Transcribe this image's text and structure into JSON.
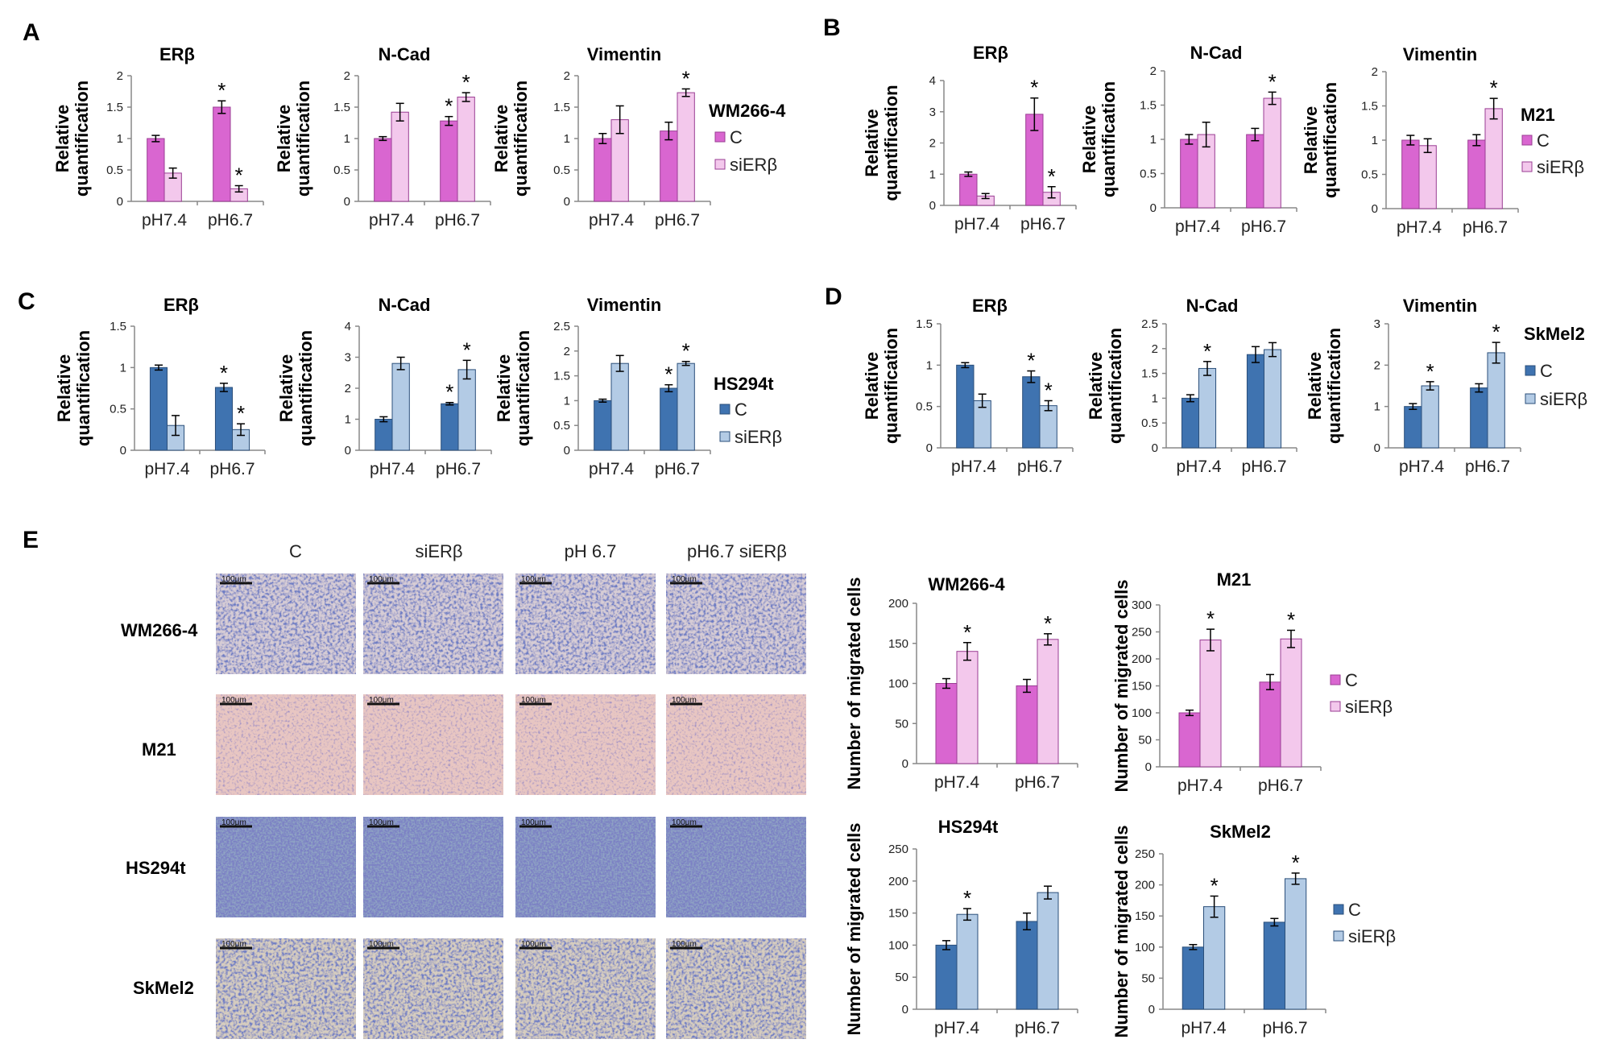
{
  "colors": {
    "pink_c": "#d966d0",
    "pink_si": "#f3c8ec",
    "blue_c": "#3f73b0",
    "blue_si": "#b3cbe5",
    "axis": "#888888",
    "err": "#000000"
  },
  "panels": {
    "A": {
      "letter": "A",
      "cell_line": "WM266-4",
      "legend": [
        "C",
        "siERβ"
      ]
    },
    "B": {
      "letter": "B",
      "cell_line": "M21",
      "legend": [
        "C",
        "siERβ"
      ]
    },
    "C": {
      "letter": "C",
      "cell_line": "HS294t",
      "legend": [
        "C",
        "siERβ"
      ]
    },
    "D": {
      "letter": "D",
      "cell_line": "SkMel2",
      "legend": [
        "C",
        "siERβ"
      ]
    },
    "E": {
      "letter": "E",
      "columns": [
        "C",
        "siERβ",
        "pH 6.7",
        "pH6.7 siERβ"
      ],
      "rows": [
        "WM266-4",
        "M21",
        "HS294t",
        "SkMel2"
      ],
      "scale_bar": "100μm",
      "legend_pink": [
        "C",
        "siERβ"
      ],
      "legend_blue": [
        "C",
        "siERβ"
      ]
    }
  },
  "chart_data": [
    {
      "id": "A1",
      "panel": "A",
      "type": "bar",
      "title": "ERβ",
      "ylabel": "Relative quantification",
      "categories": [
        "pH7.4",
        "pH6.7"
      ],
      "ylim": [
        0,
        2
      ],
      "yticks": [
        "0",
        "0.5",
        "1",
        "1.5",
        "2"
      ],
      "series": [
        {
          "name": "C",
          "values": [
            1.0,
            1.5
          ],
          "err": [
            0.05,
            0.1
          ]
        },
        {
          "name": "siERβ",
          "values": [
            0.45,
            0.2
          ],
          "err": [
            0.08,
            0.05
          ]
        }
      ],
      "significant": [
        [
          false,
          true
        ],
        [
          false,
          true
        ]
      ]
    },
    {
      "id": "A2",
      "panel": "A",
      "type": "bar",
      "title": "N-Cad",
      "ylabel": "Relative quantification",
      "categories": [
        "pH7.4",
        "pH6.7"
      ],
      "ylim": [
        0,
        2
      ],
      "yticks": [
        "0",
        "0.5",
        "1",
        "1.5",
        "2"
      ],
      "series": [
        {
          "name": "C",
          "values": [
            1.0,
            1.28
          ],
          "err": [
            0.03,
            0.07
          ]
        },
        {
          "name": "siERβ",
          "values": [
            1.42,
            1.66
          ],
          "err": [
            0.14,
            0.07
          ]
        }
      ],
      "significant": [
        [
          false,
          true
        ],
        [
          false,
          true
        ]
      ]
    },
    {
      "id": "A3",
      "panel": "A",
      "type": "bar",
      "title": "Vimentin",
      "ylabel": "Relative quantification",
      "categories": [
        "pH7.4",
        "pH6.7"
      ],
      "ylim": [
        0,
        2
      ],
      "yticks": [
        "0",
        "0.5",
        "1",
        "1.5",
        "2"
      ],
      "series": [
        {
          "name": "C",
          "values": [
            1.0,
            1.12
          ],
          "err": [
            0.08,
            0.14
          ]
        },
        {
          "name": "siERβ",
          "values": [
            1.3,
            1.73
          ],
          "err": [
            0.22,
            0.06
          ]
        }
      ],
      "significant": [
        [
          false,
          false
        ],
        [
          false,
          true
        ]
      ]
    },
    {
      "id": "B1",
      "panel": "B",
      "type": "bar",
      "title": "ERβ",
      "ylabel": "Relative quantification",
      "categories": [
        "pH7.4",
        "pH6.7"
      ],
      "ylim": [
        0,
        4
      ],
      "yticks": [
        "0",
        "1",
        "2",
        "3",
        "4"
      ],
      "series": [
        {
          "name": "C",
          "values": [
            1.0,
            2.92
          ],
          "err": [
            0.07,
            0.52
          ]
        },
        {
          "name": "siERβ",
          "values": [
            0.3,
            0.42
          ],
          "err": [
            0.08,
            0.18
          ]
        }
      ],
      "significant": [
        [
          false,
          true
        ],
        [
          false,
          true
        ]
      ]
    },
    {
      "id": "B2",
      "panel": "B",
      "type": "bar",
      "title": "N-Cad",
      "ylabel": "Relative quantification",
      "categories": [
        "pH7.4",
        "pH6.7"
      ],
      "ylim": [
        0,
        2
      ],
      "yticks": [
        "0",
        "0.5",
        "1",
        "1.5",
        "2"
      ],
      "series": [
        {
          "name": "C",
          "values": [
            1.0,
            1.07
          ],
          "err": [
            0.07,
            0.09
          ]
        },
        {
          "name": "siERβ",
          "values": [
            1.07,
            1.6
          ],
          "err": [
            0.18,
            0.09
          ]
        }
      ],
      "significant": [
        [
          false,
          false
        ],
        [
          false,
          true
        ]
      ]
    },
    {
      "id": "B3",
      "panel": "B",
      "type": "bar",
      "title": "Vimentin",
      "ylabel": "Relative quantification",
      "categories": [
        "pH7.4",
        "pH6.7"
      ],
      "ylim": [
        0,
        2
      ],
      "yticks": [
        "0",
        "0.5",
        "1",
        "1.5",
        "2"
      ],
      "series": [
        {
          "name": "C",
          "values": [
            1.0,
            1.0
          ],
          "err": [
            0.07,
            0.08
          ]
        },
        {
          "name": "siERβ",
          "values": [
            0.92,
            1.46
          ],
          "err": [
            0.1,
            0.15
          ]
        }
      ],
      "significant": [
        [
          false,
          false
        ],
        [
          false,
          true
        ]
      ]
    },
    {
      "id": "C1",
      "panel": "C",
      "type": "bar",
      "title": "ERβ",
      "ylabel": "Relative quantification",
      "categories": [
        "pH7.4",
        "pH6.7"
      ],
      "ylim": [
        0,
        1.5
      ],
      "yticks": [
        "0",
        "0.5",
        "1",
        "1.5"
      ],
      "series": [
        {
          "name": "C",
          "values": [
            1.0,
            0.76
          ],
          "err": [
            0.03,
            0.05
          ]
        },
        {
          "name": "siERβ",
          "values": [
            0.3,
            0.25
          ],
          "err": [
            0.12,
            0.07
          ]
        }
      ],
      "significant": [
        [
          false,
          true
        ],
        [
          false,
          true
        ]
      ]
    },
    {
      "id": "C2",
      "panel": "C",
      "type": "bar",
      "title": "N-Cad",
      "ylabel": "Relative quantification",
      "categories": [
        "pH7.4",
        "pH6.7"
      ],
      "ylim": [
        0,
        4
      ],
      "yticks": [
        "0",
        "1",
        "2",
        "3",
        "4"
      ],
      "series": [
        {
          "name": "C",
          "values": [
            1.0,
            1.5
          ],
          "err": [
            0.08,
            0.04
          ]
        },
        {
          "name": "siERβ",
          "values": [
            2.8,
            2.6
          ],
          "err": [
            0.2,
            0.3
          ]
        }
      ],
      "significant": [
        [
          false,
          true
        ],
        [
          false,
          true
        ]
      ]
    },
    {
      "id": "C3",
      "panel": "C",
      "type": "bar",
      "title": "Vimentin",
      "ylabel": "Relative quantification",
      "categories": [
        "pH7.4",
        "pH6.7"
      ],
      "ylim": [
        0,
        2.5
      ],
      "yticks": [
        "0",
        "0.5",
        "1",
        "1.5",
        "2",
        "2.5"
      ],
      "series": [
        {
          "name": "C",
          "values": [
            1.0,
            1.25
          ],
          "err": [
            0.03,
            0.07
          ]
        },
        {
          "name": "siERβ",
          "values": [
            1.75,
            1.75
          ],
          "err": [
            0.16,
            0.04
          ]
        }
      ],
      "significant": [
        [
          false,
          true
        ],
        [
          false,
          true
        ]
      ]
    },
    {
      "id": "D1",
      "panel": "D",
      "type": "bar",
      "title": "ERβ",
      "ylabel": "Relative quantification",
      "categories": [
        "pH7.4",
        "pH6.7"
      ],
      "ylim": [
        0,
        1.5
      ],
      "yticks": [
        "0",
        "0.5",
        "1",
        "1.5"
      ],
      "series": [
        {
          "name": "C",
          "values": [
            1.0,
            0.86
          ],
          "err": [
            0.03,
            0.07
          ]
        },
        {
          "name": "siERβ",
          "values": [
            0.57,
            0.51
          ],
          "err": [
            0.08,
            0.06
          ]
        }
      ],
      "significant": [
        [
          false,
          true
        ],
        [
          false,
          true
        ]
      ]
    },
    {
      "id": "D2",
      "panel": "D",
      "type": "bar",
      "title": "N-Cad",
      "ylabel": "Relative quantification",
      "categories": [
        "pH7.4",
        "pH6.7"
      ],
      "ylim": [
        0,
        2.5
      ],
      "yticks": [
        "0",
        "0.5",
        "1",
        "1.5",
        "2",
        "2.5"
      ],
      "series": [
        {
          "name": "C",
          "values": [
            1.0,
            1.88
          ],
          "err": [
            0.07,
            0.16
          ]
        },
        {
          "name": "siERβ",
          "values": [
            1.6,
            1.98
          ],
          "err": [
            0.14,
            0.14
          ]
        }
      ],
      "significant": [
        [
          false,
          false
        ],
        [
          true,
          false
        ]
      ]
    },
    {
      "id": "D3",
      "panel": "D",
      "type": "bar",
      "title": "Vimentin",
      "ylabel": "Relative quantification",
      "categories": [
        "pH7.4",
        "pH6.7"
      ],
      "ylim": [
        0,
        3
      ],
      "yticks": [
        "0",
        "1",
        "2",
        "3"
      ],
      "series": [
        {
          "name": "C",
          "values": [
            1.0,
            1.45
          ],
          "err": [
            0.07,
            0.1
          ]
        },
        {
          "name": "siERβ",
          "values": [
            1.5,
            2.3
          ],
          "err": [
            0.1,
            0.25
          ]
        }
      ],
      "significant": [
        [
          false,
          false
        ],
        [
          true,
          true
        ]
      ]
    },
    {
      "id": "E1",
      "panel": "E",
      "type": "bar",
      "title": "WM266-4",
      "ylabel": "Number of migrated cells",
      "categories": [
        "pH7.4",
        "pH6.7"
      ],
      "ylim": [
        0,
        200
      ],
      "yticks": [
        "0",
        "50",
        "100",
        "150",
        "200"
      ],
      "series": [
        {
          "name": "C",
          "values": [
            100,
            97
          ],
          "err": [
            6,
            8
          ]
        },
        {
          "name": "siERβ",
          "values": [
            140,
            155
          ],
          "err": [
            11,
            7
          ]
        }
      ],
      "significant": [
        [
          false,
          false
        ],
        [
          true,
          true
        ]
      ]
    },
    {
      "id": "E2",
      "panel": "E",
      "type": "bar",
      "title": "M21",
      "ylabel": "Number of migrated cells",
      "categories": [
        "pH7.4",
        "pH6.7"
      ],
      "ylim": [
        0,
        300
      ],
      "yticks": [
        "0",
        "50",
        "100",
        "150",
        "200",
        "250",
        "300"
      ],
      "series": [
        {
          "name": "C",
          "values": [
            100,
            157
          ],
          "err": [
            5,
            14
          ]
        },
        {
          "name": "siERβ",
          "values": [
            235,
            237
          ],
          "err": [
            20,
            16
          ]
        }
      ],
      "significant": [
        [
          false,
          false
        ],
        [
          true,
          true
        ]
      ]
    },
    {
      "id": "E3",
      "panel": "E",
      "type": "bar",
      "title": "HS294t",
      "ylabel": "Number of migrated cells",
      "categories": [
        "pH7.4",
        "pH6.7"
      ],
      "ylim": [
        0,
        250
      ],
      "yticks": [
        "0",
        "50",
        "100",
        "150",
        "200",
        "250"
      ],
      "series": [
        {
          "name": "C",
          "values": [
            100,
            137
          ],
          "err": [
            7,
            13
          ]
        },
        {
          "name": "siERβ",
          "values": [
            148,
            182
          ],
          "err": [
            9,
            10
          ]
        }
      ],
      "significant": [
        [
          false,
          false
        ],
        [
          true,
          false
        ]
      ]
    },
    {
      "id": "E4",
      "panel": "E",
      "type": "bar",
      "title": "SkMel2",
      "ylabel": "Number of migrated cells",
      "categories": [
        "pH7.4",
        "pH6.7"
      ],
      "ylim": [
        0,
        250
      ],
      "yticks": [
        "0",
        "50",
        "100",
        "150",
        "200",
        "250"
      ],
      "series": [
        {
          "name": "C",
          "values": [
            100,
            140
          ],
          "err": [
            4,
            6
          ]
        },
        {
          "name": "siERβ",
          "values": [
            165,
            210
          ],
          "err": [
            17,
            9
          ]
        }
      ],
      "significant": [
        [
          false,
          false
        ],
        [
          true,
          true
        ]
      ]
    }
  ]
}
